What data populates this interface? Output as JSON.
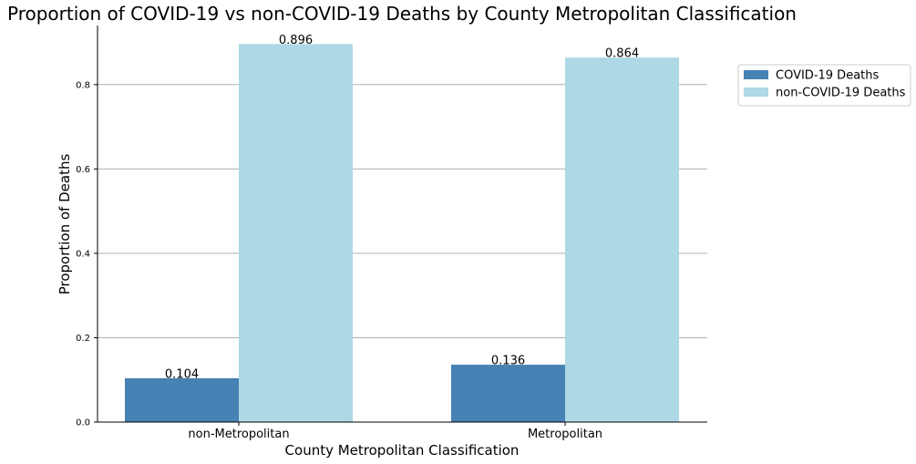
{
  "chart_data": {
    "type": "bar",
    "title": "Proportion of COVID-19 vs non-COVID-19 Deaths by County Metropolitan Classification",
    "xlabel": "County Metropolitan Classification",
    "ylabel": "Proportion of Deaths",
    "categories": [
      "non-Metropolitan",
      "Metropolitan"
    ],
    "series": [
      {
        "name": "COVID-19 Deaths",
        "values": [
          0.104,
          0.136
        ],
        "labels": [
          "0.104",
          "0.136"
        ],
        "color": "#4682b4"
      },
      {
        "name": "non-COVID-19 Deaths",
        "values": [
          0.896,
          0.864
        ],
        "labels": [
          "0.896",
          "0.864"
        ],
        "color": "#add8e6"
      }
    ],
    "yticks": [
      0.0,
      0.2,
      0.4,
      0.6,
      0.8
    ],
    "ytick_labels": [
      "0.0",
      "0.2",
      "0.4",
      "0.6",
      "0.8"
    ],
    "ylim": [
      0,
      0.94
    ],
    "grid": "horizontal",
    "legend_position": "upper right, outside plot"
  }
}
